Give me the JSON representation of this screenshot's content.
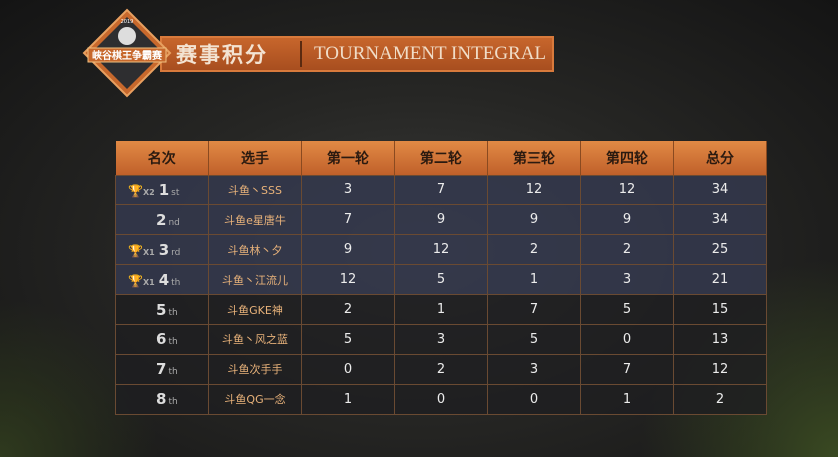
{
  "logo": {
    "year": "2019",
    "name": "峡谷棋王争霸赛"
  },
  "banner": {
    "title_cn": "赛事积分",
    "title_en": "TOURNAMENT INTEGRAL"
  },
  "columns": [
    "名次",
    "选手",
    "第一轮",
    "第二轮",
    "第三轮",
    "第四轮",
    "总分"
  ],
  "colors": {
    "header": "#d6763a",
    "banner": "#b85a25",
    "top_rows": "#34384e"
  },
  "rows": [
    {
      "trophy": "X2",
      "rank": "1",
      "suffix": "st",
      "player": "斗鱼丶SSS",
      "r1": "3",
      "r2": "7",
      "r3": "12",
      "r4": "12",
      "total": "34"
    },
    {
      "trophy": "",
      "rank": "2",
      "suffix": "nd",
      "player": "斗鱼e星唐牛",
      "r1": "7",
      "r2": "9",
      "r3": "9",
      "r4": "9",
      "total": "34"
    },
    {
      "trophy": "X1",
      "rank": "3",
      "suffix": "rd",
      "player": "斗鱼林丶夕",
      "r1": "9",
      "r2": "12",
      "r3": "2",
      "r4": "2",
      "total": "25"
    },
    {
      "trophy": "X1",
      "rank": "4",
      "suffix": "th",
      "player": "斗鱼丶江流儿",
      "r1": "12",
      "r2": "5",
      "r3": "1",
      "r4": "3",
      "total": "21"
    },
    {
      "trophy": "",
      "rank": "5",
      "suffix": "th",
      "player": "斗鱼GKE神",
      "r1": "2",
      "r2": "1",
      "r3": "7",
      "r4": "5",
      "total": "15"
    },
    {
      "trophy": "",
      "rank": "6",
      "suffix": "th",
      "player": "斗鱼丶风之蓝",
      "r1": "5",
      "r2": "3",
      "r3": "5",
      "r4": "0",
      "total": "13"
    },
    {
      "trophy": "",
      "rank": "7",
      "suffix": "th",
      "player": "斗鱼次手手",
      "r1": "0",
      "r2": "2",
      "r3": "3",
      "r4": "7",
      "total": "12"
    },
    {
      "trophy": "",
      "rank": "8",
      "suffix": "th",
      "player": "斗鱼QG一念",
      "r1": "1",
      "r2": "0",
      "r3": "0",
      "r4": "1",
      "total": "2"
    }
  ]
}
